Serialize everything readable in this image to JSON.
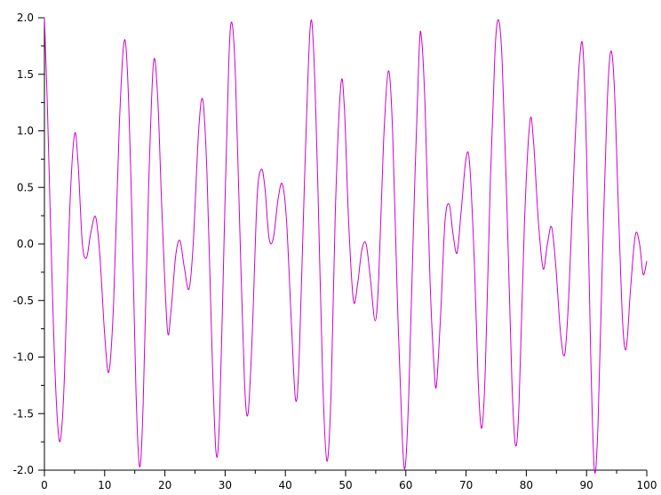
{
  "chart_data": {
    "type": "line",
    "title": "",
    "xlabel": "",
    "ylabel": "",
    "xlim": [
      0,
      100
    ],
    "ylim": [
      -2.0,
      2.0
    ],
    "grid": false,
    "legend": "none",
    "x_ticks": [
      {
        "value": 0,
        "label": "0"
      },
      {
        "value": 10,
        "label": "10"
      },
      {
        "value": 20,
        "label": "20"
      },
      {
        "value": 30,
        "label": "30"
      },
      {
        "value": 40,
        "label": "40"
      },
      {
        "value": 50,
        "label": "50"
      },
      {
        "value": 60,
        "label": "60"
      },
      {
        "value": 70,
        "label": "70"
      },
      {
        "value": 80,
        "label": "80"
      },
      {
        "value": 90,
        "label": "90"
      },
      {
        "value": 100,
        "label": "100"
      }
    ],
    "y_ticks": [
      {
        "value": 2.0,
        "label": "2.0"
      },
      {
        "value": 1.5,
        "label": "1.5"
      },
      {
        "value": 1.0,
        "label": "1.0"
      },
      {
        "value": 0.5,
        "label": "0.5"
      },
      {
        "value": 0.0,
        "label": "0.0"
      },
      {
        "value": -0.5,
        "label": "-0.5"
      },
      {
        "value": -1.0,
        "label": "-1.0"
      },
      {
        "value": -1.5,
        "label": "-1.5"
      },
      {
        "value": -2.0,
        "label": "-2.0"
      }
    ],
    "series": [
      {
        "color": "#cc00cc",
        "points": [
          [
            0.0,
            2.0
          ],
          [
            0.5,
            1.2
          ],
          [
            1.0,
            0.2
          ],
          [
            1.6,
            -0.9
          ],
          [
            2.2,
            -1.6
          ],
          [
            2.7,
            -1.72
          ],
          [
            3.3,
            -1.2
          ],
          [
            4.2,
            0.3
          ],
          [
            5.0,
            0.97
          ],
          [
            5.6,
            0.7
          ],
          [
            6.3,
            0.0
          ],
          [
            7.0,
            -0.12
          ],
          [
            7.7,
            0.1
          ],
          [
            8.5,
            0.24
          ],
          [
            9.2,
            -0.1
          ],
          [
            10.0,
            -0.8
          ],
          [
            10.7,
            -1.13
          ],
          [
            11.5,
            -0.5
          ],
          [
            12.4,
            1.0
          ],
          [
            13.2,
            1.78
          ],
          [
            13.8,
            1.5
          ],
          [
            14.5,
            0.3
          ],
          [
            15.2,
            -1.3
          ],
          [
            15.8,
            -1.97
          ],
          [
            16.4,
            -1.4
          ],
          [
            17.3,
            0.5
          ],
          [
            18.1,
            1.6
          ],
          [
            18.8,
            1.3
          ],
          [
            19.5,
            0.3
          ],
          [
            20.4,
            -0.75
          ],
          [
            21.0,
            -0.6
          ],
          [
            21.8,
            -0.1
          ],
          [
            22.5,
            0.03
          ],
          [
            23.2,
            -0.2
          ],
          [
            24.0,
            -0.4
          ],
          [
            24.7,
            0.0
          ],
          [
            25.6,
            1.0
          ],
          [
            26.3,
            1.27
          ],
          [
            27.0,
            0.6
          ],
          [
            27.8,
            -0.9
          ],
          [
            28.5,
            -1.85
          ],
          [
            29.1,
            -1.5
          ],
          [
            29.9,
            0.2
          ],
          [
            30.6,
            1.6
          ],
          [
            31.1,
            1.96
          ],
          [
            31.7,
            1.5
          ],
          [
            32.4,
            0.2
          ],
          [
            33.2,
            -1.2
          ],
          [
            33.8,
            -1.5
          ],
          [
            34.5,
            -0.8
          ],
          [
            35.3,
            0.4
          ],
          [
            36.0,
            0.66
          ],
          [
            36.6,
            0.5
          ],
          [
            37.3,
            0.05
          ],
          [
            38.0,
            0.05
          ],
          [
            38.8,
            0.4
          ],
          [
            39.5,
            0.53
          ],
          [
            40.2,
            0.2
          ],
          [
            41.0,
            -0.7
          ],
          [
            41.7,
            -1.38
          ],
          [
            42.3,
            -1.0
          ],
          [
            43.2,
            0.6
          ],
          [
            44.1,
            1.9
          ],
          [
            44.7,
            1.7
          ],
          [
            45.4,
            0.5
          ],
          [
            46.2,
            -1.2
          ],
          [
            46.9,
            -1.92
          ],
          [
            47.6,
            -1.3
          ],
          [
            48.3,
            0.3
          ],
          [
            49.2,
            1.4
          ],
          [
            49.8,
            1.2
          ],
          [
            50.5,
            0.2
          ],
          [
            51.3,
            -0.5
          ],
          [
            52.0,
            -0.35
          ],
          [
            52.7,
            -0.05
          ],
          [
            53.4,
            0.0
          ],
          [
            54.1,
            -0.3
          ],
          [
            54.9,
            -0.68
          ],
          [
            55.5,
            -0.3
          ],
          [
            56.3,
            0.9
          ],
          [
            57.1,
            1.53
          ],
          [
            57.8,
            1.0
          ],
          [
            58.6,
            -0.5
          ],
          [
            59.4,
            -1.7
          ],
          [
            59.9,
            -1.97
          ],
          [
            60.5,
            -1.3
          ],
          [
            61.4,
            0.4
          ],
          [
            62.2,
            1.7
          ],
          [
            62.6,
            1.82
          ],
          [
            63.2,
            1.2
          ],
          [
            64.0,
            -0.3
          ],
          [
            64.7,
            -1.1
          ],
          [
            65.1,
            -1.24
          ],
          [
            65.8,
            -0.6
          ],
          [
            66.5,
            0.2
          ],
          [
            67.2,
            0.35
          ],
          [
            67.8,
            0.1
          ],
          [
            68.5,
            -0.08
          ],
          [
            69.2,
            0.3
          ],
          [
            70.0,
            0.76
          ],
          [
            70.6,
            0.7
          ],
          [
            71.4,
            -0.2
          ],
          [
            72.0,
            -1.2
          ],
          [
            72.6,
            -1.63
          ],
          [
            73.2,
            -1.1
          ],
          [
            74.0,
            0.5
          ],
          [
            74.8,
            1.7
          ],
          [
            75.4,
            1.98
          ],
          [
            76.0,
            1.6
          ],
          [
            76.8,
            0.3
          ],
          [
            77.6,
            -1.2
          ],
          [
            78.2,
            -1.78
          ],
          [
            78.8,
            -1.4
          ],
          [
            79.7,
            0.2
          ],
          [
            80.6,
            1.08
          ],
          [
            81.2,
            0.9
          ],
          [
            82.0,
            0.2
          ],
          [
            82.8,
            -0.22
          ],
          [
            83.5,
            0.0
          ],
          [
            84.2,
            0.15
          ],
          [
            84.9,
            -0.2
          ],
          [
            85.7,
            -0.8
          ],
          [
            86.4,
            -0.97
          ],
          [
            87.1,
            -0.4
          ],
          [
            88.0,
            0.8
          ],
          [
            88.8,
            1.6
          ],
          [
            89.4,
            1.73
          ],
          [
            90.0,
            0.8
          ],
          [
            90.7,
            -1.0
          ],
          [
            91.3,
            -2.0
          ],
          [
            91.9,
            -1.6
          ],
          [
            92.6,
            -0.2
          ],
          [
            93.4,
            1.2
          ],
          [
            94.0,
            1.7
          ],
          [
            94.6,
            1.4
          ],
          [
            95.3,
            0.3
          ],
          [
            96.0,
            -0.7
          ],
          [
            96.6,
            -0.92
          ],
          [
            97.3,
            -0.4
          ],
          [
            98.1,
            0.08
          ],
          [
            98.8,
            0.0
          ],
          [
            99.4,
            -0.27
          ],
          [
            100.0,
            -0.15
          ]
        ]
      }
    ]
  }
}
